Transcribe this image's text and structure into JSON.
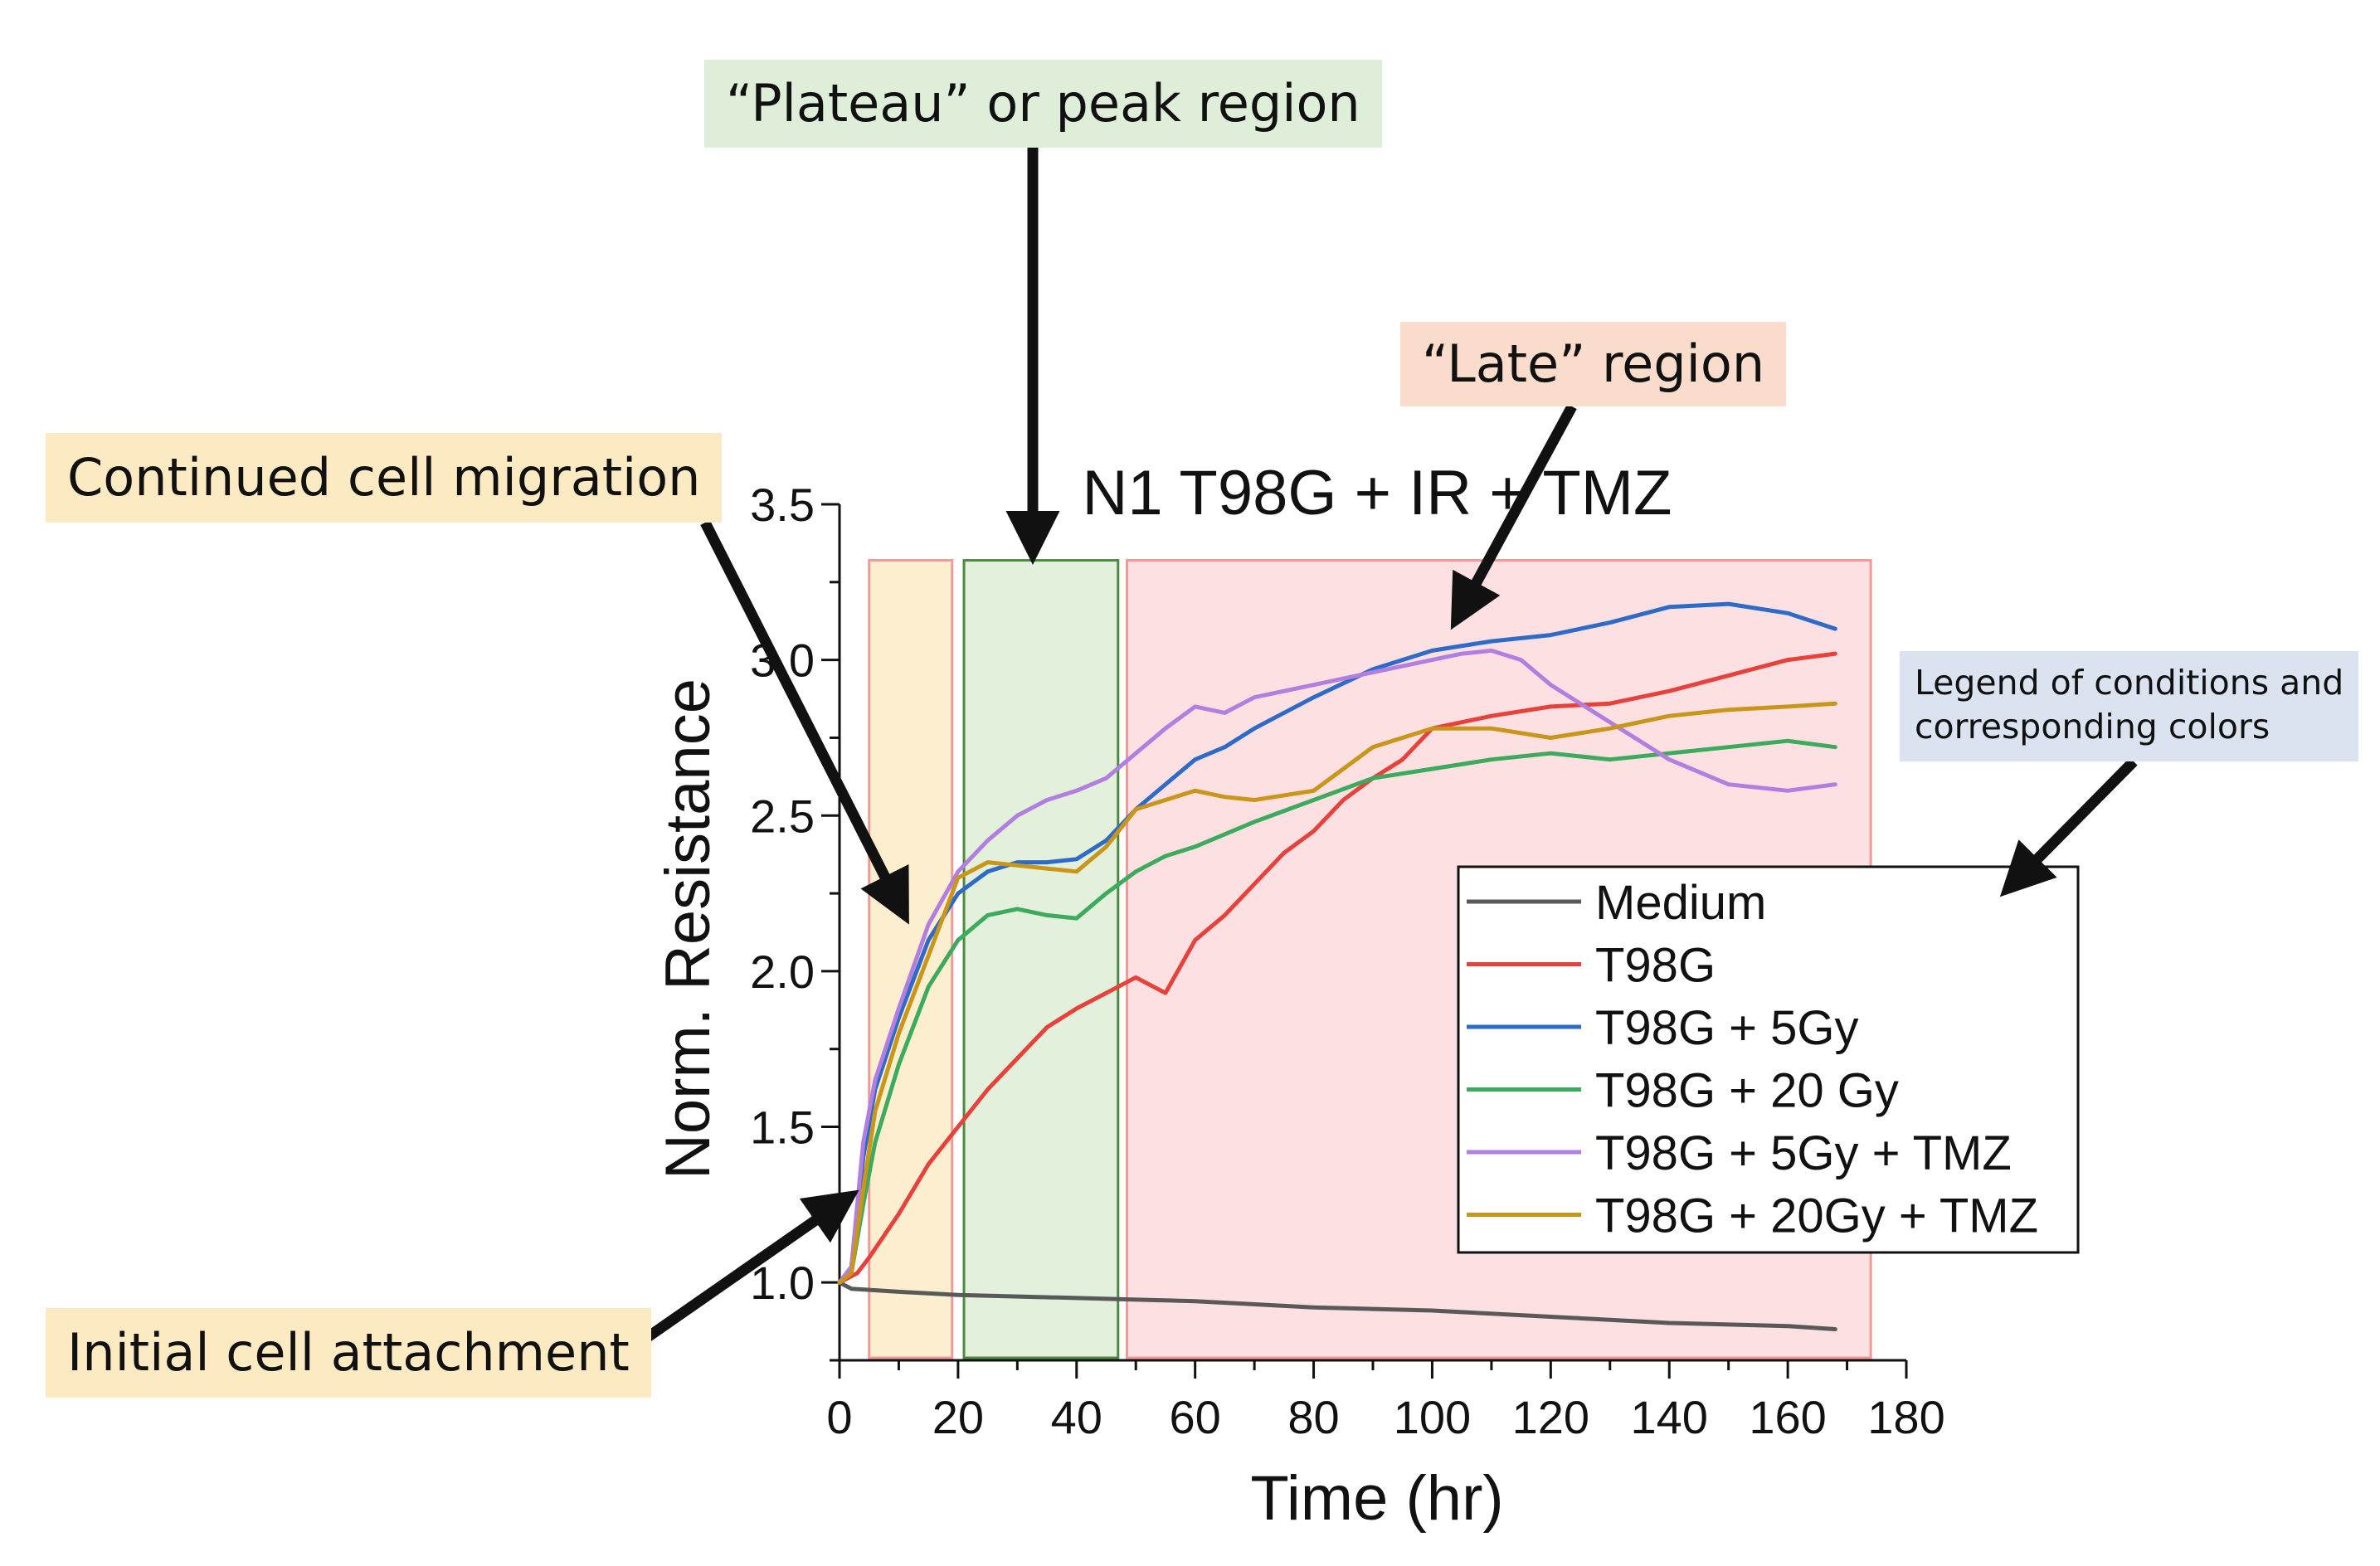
{
  "chart_data": {
    "type": "line",
    "title": "N1 T98G + IR + TMZ",
    "xlabel": "Time (hr)",
    "ylabel": "Norm. Resistance",
    "xlim": [
      0,
      180
    ],
    "ylim": [
      0.75,
      3.5
    ],
    "xticks": [
      0,
      20,
      40,
      60,
      80,
      100,
      120,
      140,
      160,
      180
    ],
    "yticks": [
      1.0,
      1.5,
      2.0,
      2.5,
      3.0,
      3.5
    ],
    "x_tick_labels": [
      "0",
      "20",
      "40",
      "60",
      "80",
      "100",
      "120",
      "140",
      "160",
      "180"
    ],
    "y_tick_labels": [
      "1.0",
      "1.5",
      "2.0",
      "2.5",
      "3.0",
      "3.5"
    ],
    "series": [
      {
        "name": "Medium",
        "color": "#595959",
        "x": [
          0,
          2,
          10,
          20,
          40,
          60,
          80,
          100,
          120,
          140,
          160,
          168
        ],
        "y": [
          1.0,
          0.98,
          0.97,
          0.96,
          0.95,
          0.94,
          0.92,
          0.91,
          0.89,
          0.87,
          0.86,
          0.85
        ]
      },
      {
        "name": "T98G",
        "color": "#e8413c",
        "x": [
          0,
          3,
          5,
          10,
          15,
          20,
          25,
          30,
          35,
          40,
          45,
          50,
          55,
          60,
          65,
          70,
          75,
          80,
          85,
          90,
          95,
          100,
          110,
          120,
          130,
          140,
          150,
          160,
          168
        ],
        "y": [
          1.0,
          1.03,
          1.08,
          1.22,
          1.38,
          1.5,
          1.62,
          1.72,
          1.82,
          1.88,
          1.93,
          1.98,
          1.93,
          2.1,
          2.18,
          2.28,
          2.38,
          2.45,
          2.55,
          2.62,
          2.68,
          2.78,
          2.82,
          2.85,
          2.86,
          2.9,
          2.95,
          3.0,
          3.02
        ]
      },
      {
        "name": "T98G + 5Gy",
        "color": "#2e6bc9",
        "x": [
          0,
          2,
          4,
          6,
          10,
          15,
          20,
          25,
          30,
          35,
          40,
          45,
          50,
          55,
          60,
          65,
          70,
          80,
          90,
          100,
          110,
          120,
          130,
          140,
          150,
          160,
          168
        ],
        "y": [
          1.0,
          1.05,
          1.4,
          1.62,
          1.85,
          2.1,
          2.25,
          2.32,
          2.35,
          2.35,
          2.36,
          2.42,
          2.52,
          2.6,
          2.68,
          2.72,
          2.78,
          2.88,
          2.97,
          3.03,
          3.06,
          3.08,
          3.12,
          3.17,
          3.18,
          3.15,
          3.1
        ]
      },
      {
        "name": "T98G + 20 Gy",
        "color": "#3cab5d",
        "x": [
          0,
          2,
          4,
          6,
          10,
          15,
          20,
          25,
          30,
          35,
          40,
          45,
          50,
          55,
          60,
          70,
          80,
          90,
          100,
          110,
          120,
          130,
          140,
          150,
          160,
          168
        ],
        "y": [
          1.0,
          1.03,
          1.25,
          1.45,
          1.7,
          1.95,
          2.1,
          2.18,
          2.2,
          2.18,
          2.17,
          2.25,
          2.32,
          2.37,
          2.4,
          2.48,
          2.55,
          2.62,
          2.65,
          2.68,
          2.7,
          2.68,
          2.7,
          2.72,
          2.74,
          2.72
        ]
      },
      {
        "name": "T98G + 5Gy + TMZ",
        "color": "#b27ee0",
        "x": [
          0,
          2,
          4,
          6,
          10,
          15,
          20,
          25,
          30,
          35,
          40,
          45,
          50,
          55,
          60,
          65,
          70,
          80,
          90,
          100,
          105,
          110,
          115,
          120,
          130,
          140,
          150,
          160,
          168
        ],
        "y": [
          1.0,
          1.05,
          1.45,
          1.65,
          1.88,
          2.15,
          2.32,
          2.42,
          2.5,
          2.55,
          2.58,
          2.62,
          2.7,
          2.78,
          2.85,
          2.83,
          2.88,
          2.92,
          2.96,
          3.0,
          3.02,
          3.03,
          3.0,
          2.92,
          2.8,
          2.68,
          2.6,
          2.58,
          2.6
        ]
      },
      {
        "name": "T98G + 20Gy + TMZ",
        "color": "#c9961a",
        "x": [
          0,
          2,
          4,
          6,
          10,
          15,
          20,
          25,
          30,
          35,
          40,
          45,
          50,
          55,
          60,
          65,
          70,
          80,
          90,
          100,
          110,
          120,
          130,
          140,
          150,
          160,
          168
        ],
        "y": [
          1.0,
          1.03,
          1.3,
          1.55,
          1.8,
          2.05,
          2.3,
          2.35,
          2.34,
          2.33,
          2.32,
          2.4,
          2.52,
          2.55,
          2.58,
          2.56,
          2.55,
          2.58,
          2.72,
          2.78,
          2.78,
          2.75,
          2.78,
          2.82,
          2.84,
          2.85,
          2.86
        ]
      }
    ],
    "regions": [
      {
        "name": "initial-region",
        "x0": 5,
        "x1": 19,
        "fill": "#fcefd0",
        "stroke": "#f09a9a"
      },
      {
        "name": "plateau-region",
        "x0": 21,
        "x1": 47,
        "fill": "#e2f0dc",
        "stroke": "#4e8a3e"
      },
      {
        "name": "late-region",
        "x0": 48.5,
        "x1": 174,
        "fill": "#fde0e2",
        "stroke": "#f09a9a"
      }
    ]
  },
  "annotations": {
    "plateau": "“Plateau” or peak region",
    "late": "“Late” region",
    "continued": "Continued cell migration",
    "initial": "Initial cell attachment",
    "legend_note_line1": "Legend of conditions and",
    "legend_note_line2": "corresponding colors"
  }
}
